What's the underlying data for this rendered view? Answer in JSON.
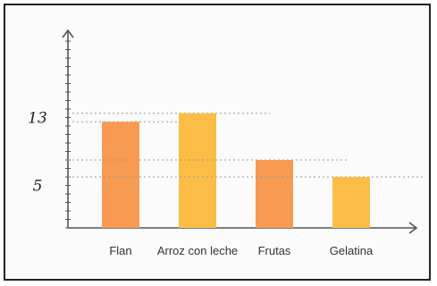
{
  "chart_data": {
    "type": "bar",
    "categories": [
      "Flan",
      "Arroz con leche",
      "Frutas",
      "Gelatina"
    ],
    "values": [
      12.5,
      13.5,
      8,
      6
    ],
    "yticks_labeled": [
      13,
      5
    ],
    "ylim": [
      0,
      22
    ],
    "reference_lines": [
      13.5,
      12.5,
      8,
      6
    ],
    "grid": false,
    "colors": {
      "Flan": "#f79a52",
      "Arroz con leche": "#fbbd45",
      "Frutas": "#f79a52",
      "Gelatina": "#fbbd45"
    },
    "axis_color": "#555555",
    "reference_line_color": "#9a9a9a"
  }
}
